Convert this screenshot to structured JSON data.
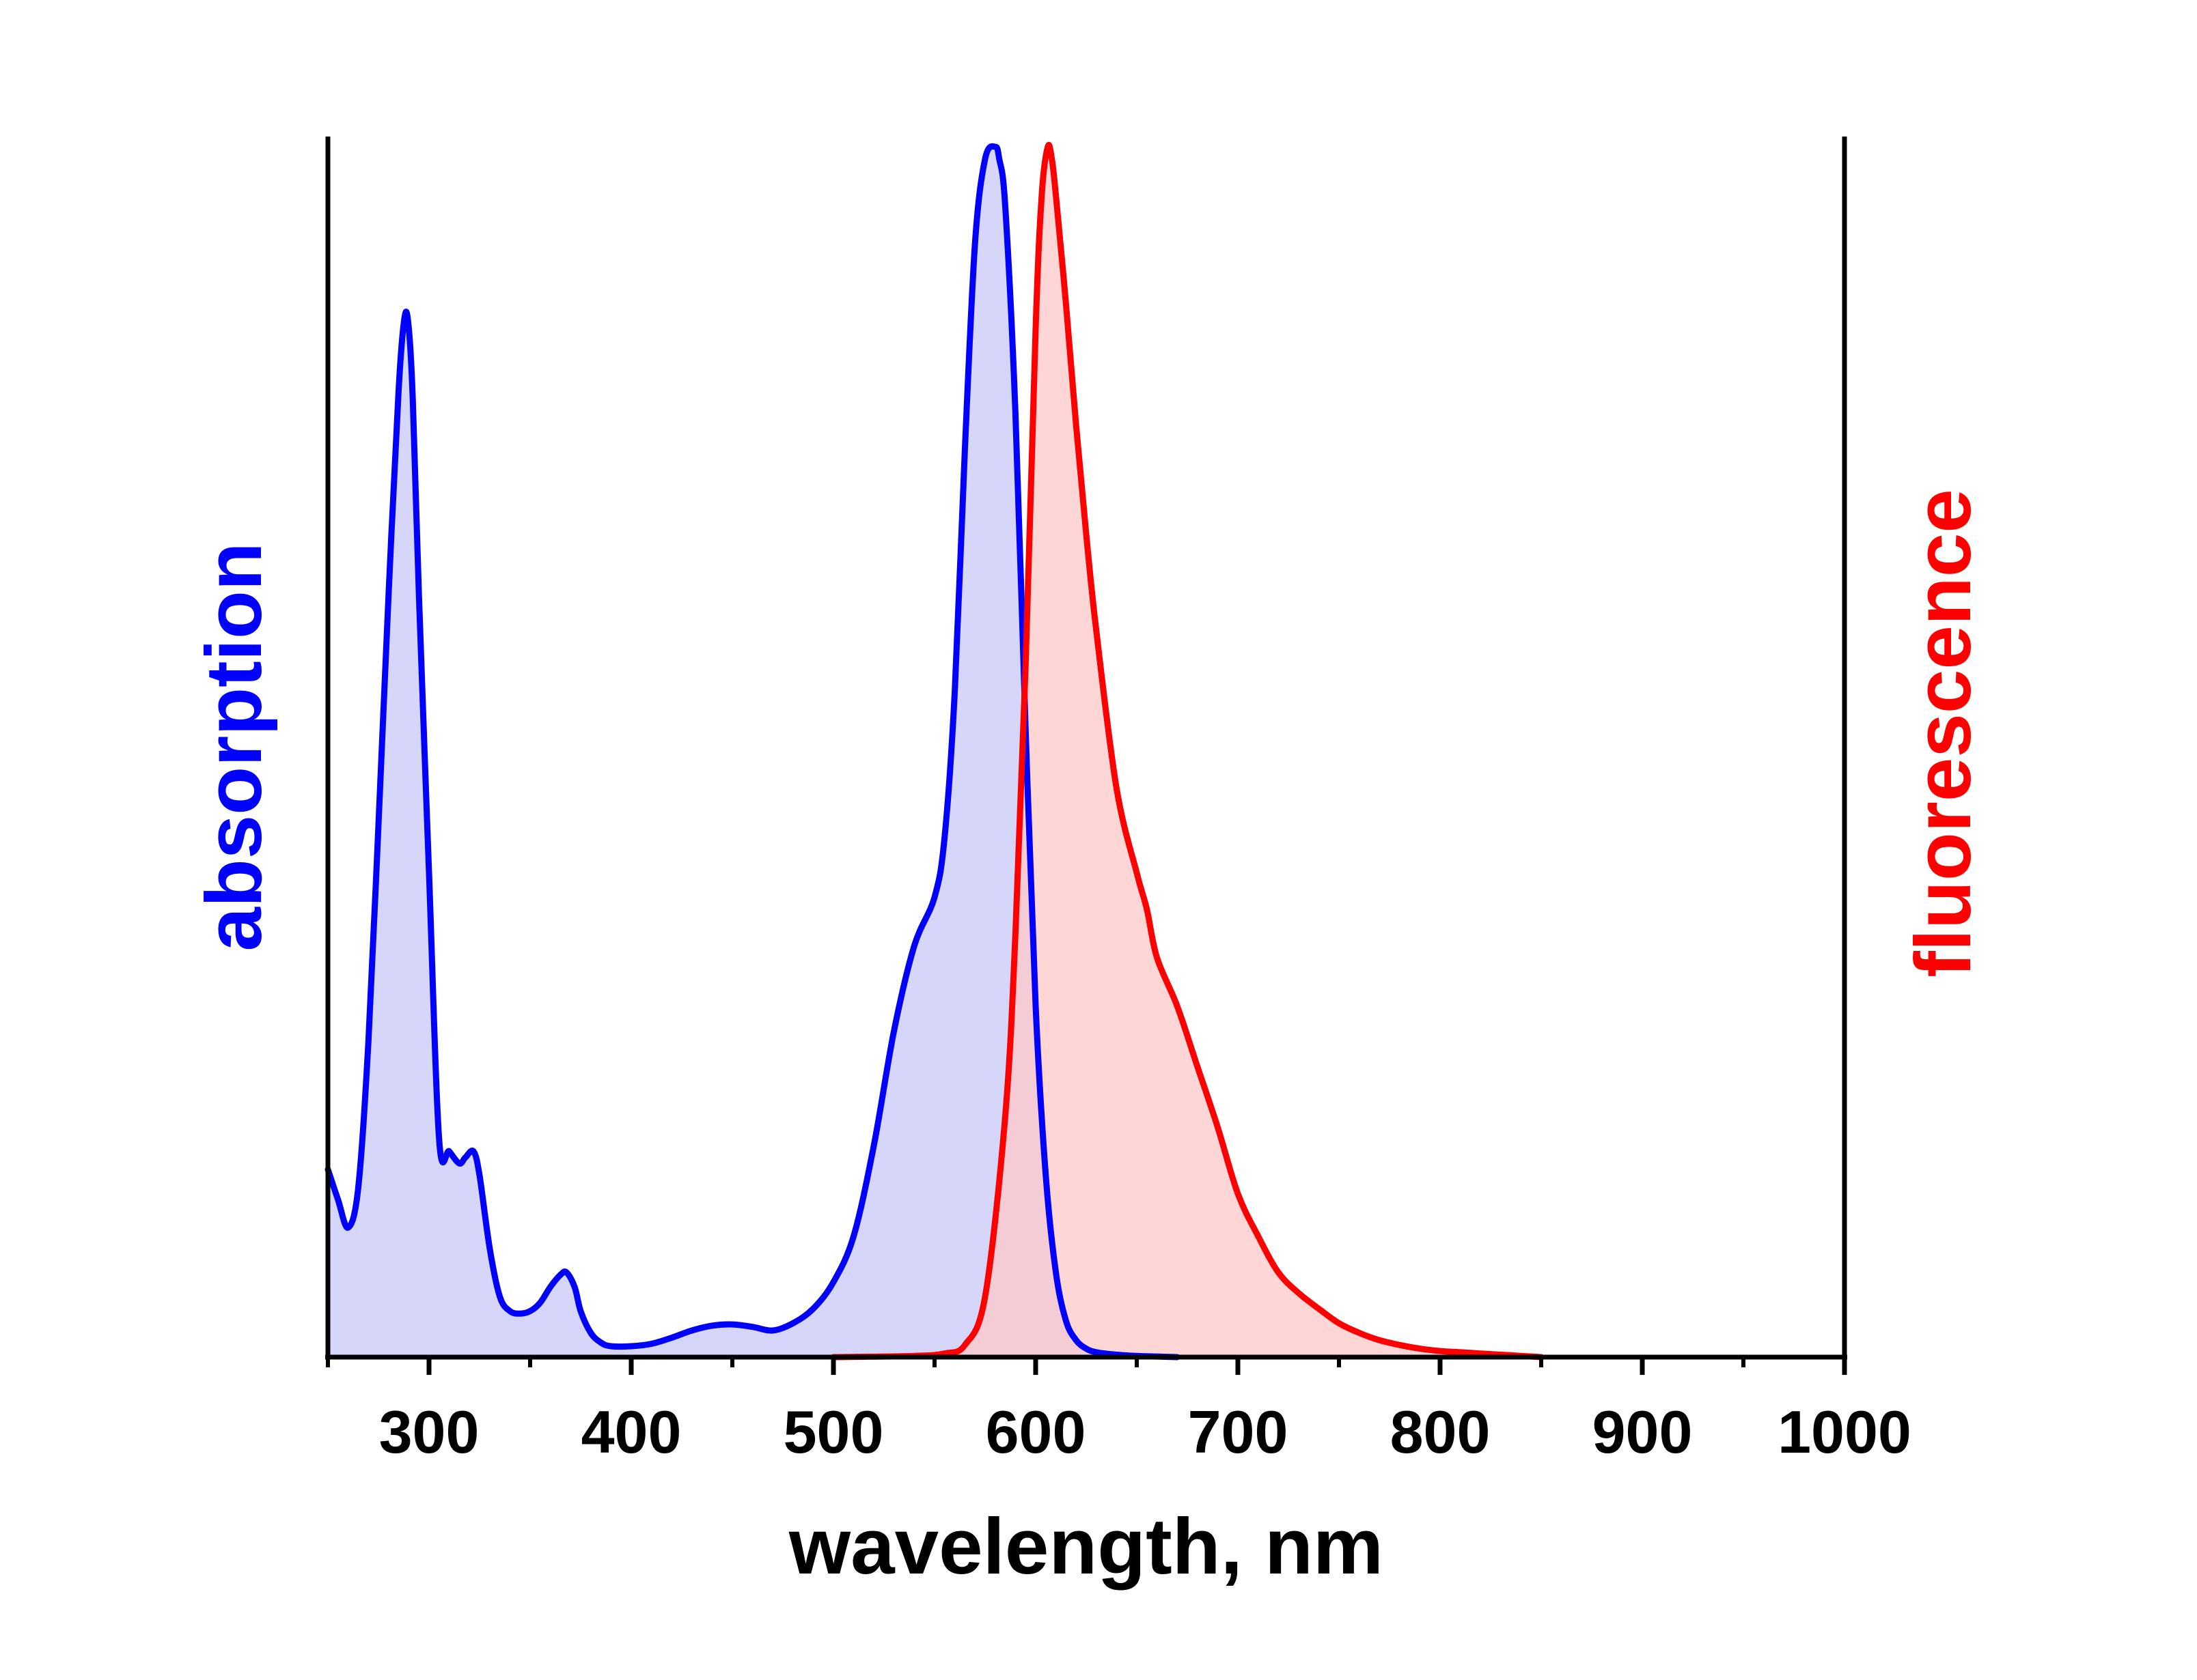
{
  "chart_data": {
    "type": "area",
    "xlabel": "wavelength, nm",
    "ylabel_left": "absorption",
    "ylabel_right": "fluorescence",
    "xlim": [
      250,
      1000
    ],
    "ylim": [
      0,
      1
    ],
    "x_ticks": [
      300,
      400,
      500,
      600,
      700,
      800,
      900,
      1000
    ],
    "x_minor_ticks": [
      250,
      350,
      450,
      550,
      650,
      750,
      850,
      950
    ],
    "y_ticks_shown": false,
    "grid": false,
    "legend": "none",
    "series": [
      {
        "axis": "left",
        "color": "#0000ff",
        "fill": "#c8c8f8",
        "x": [
          250,
          255,
          260,
          265,
          270,
          275,
          280,
          285,
          288,
          290,
          292,
          295,
          300,
          305,
          310,
          315,
          318,
          322,
          325,
          330,
          335,
          340,
          345,
          350,
          355,
          360,
          365,
          368,
          372,
          375,
          380,
          385,
          390,
          400,
          410,
          420,
          430,
          440,
          450,
          460,
          470,
          480,
          490,
          500,
          510,
          520,
          530,
          540,
          550,
          555,
          560,
          565,
          570,
          575,
          580,
          582,
          585,
          590,
          595,
          600,
          605,
          610,
          615,
          620,
          625,
          630,
          640,
          650,
          660,
          670
        ],
        "y": [
          0.155,
          0.13,
          0.107,
          0.14,
          0.26,
          0.44,
          0.63,
          0.8,
          0.86,
          0.85,
          0.79,
          0.63,
          0.4,
          0.18,
          0.17,
          0.16,
          0.165,
          0.17,
          0.15,
          0.09,
          0.05,
          0.038,
          0.036,
          0.038,
          0.045,
          0.058,
          0.068,
          0.07,
          0.058,
          0.038,
          0.02,
          0.012,
          0.009,
          0.009,
          0.011,
          0.016,
          0.022,
          0.026,
          0.027,
          0.025,
          0.022,
          0.028,
          0.04,
          0.062,
          0.1,
          0.175,
          0.27,
          0.34,
          0.38,
          0.43,
          0.55,
          0.75,
          0.92,
          0.99,
          1.0,
          0.99,
          0.95,
          0.78,
          0.52,
          0.29,
          0.15,
          0.07,
          0.03,
          0.014,
          0.007,
          0.004,
          0.002,
          0.001,
          0.0005,
          0.0
        ]
      },
      {
        "axis": "right",
        "color": "#ff0000",
        "fill": "#ffc8c8",
        "x": [
          500,
          540,
          555,
          565,
          575,
          585,
          590,
          595,
          600,
          603,
          606,
          608,
          610,
          615,
          620,
          625,
          630,
          640,
          650,
          655,
          660,
          670,
          680,
          690,
          700,
          710,
          720,
          730,
          740,
          750,
          760,
          770,
          780,
          790,
          800,
          810,
          820,
          830,
          840,
          850
        ],
        "y": [
          0.0,
          0.001,
          0.003,
          0.01,
          0.05,
          0.2,
          0.35,
          0.57,
          0.85,
          0.96,
          1.0,
          0.99,
          0.96,
          0.87,
          0.77,
          0.68,
          0.6,
          0.47,
          0.4,
          0.37,
          0.33,
          0.29,
          0.24,
          0.19,
          0.135,
          0.1,
          0.07,
          0.053,
          0.04,
          0.028,
          0.02,
          0.014,
          0.01,
          0.007,
          0.005,
          0.004,
          0.003,
          0.002,
          0.001,
          0.0
        ]
      }
    ]
  }
}
